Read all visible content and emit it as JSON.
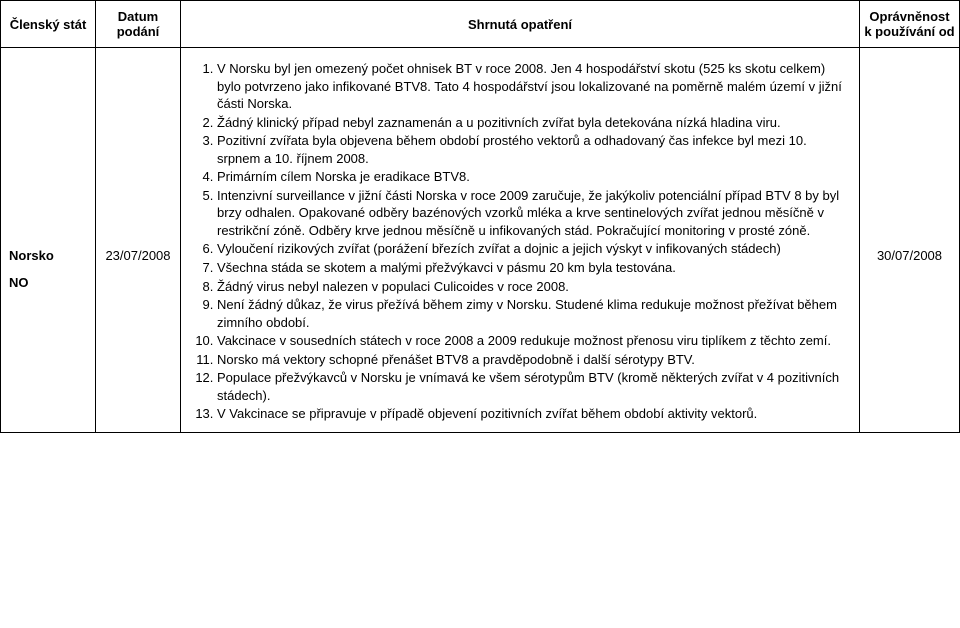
{
  "header": {
    "state": "Členský stát",
    "date": "Datum podání",
    "measures": "Shrnutá opatření",
    "eligibility": "Oprávněnost k používání od"
  },
  "row": {
    "state_name": "Norsko",
    "state_code": "NO",
    "date": "23/07/2008",
    "eligibility": "30/07/2008",
    "items": [
      "V Norsku byl jen omezený počet ohnisek BT v roce 2008. Jen 4 hospodářství skotu (525 ks skotu celkem) bylo potvrzeno jako infikované BTV8. Tato 4 hospodářství jsou lokalizované na poměrně malém území v jižní části Norska.",
      "Žádný klinický případ nebyl zaznamenán a u pozitivních zvířat byla detekována nízká hladina viru.",
      "Pozitivní zvířata byla objevena během období prostého vektorů a odhadovaný čas infekce byl mezi 10. srpnem a 10. říjnem 2008.",
      "Primárním cílem Norska je eradikace BTV8.",
      "Intenzivní surveillance v jižní části Norska v roce 2009 zaručuje, že jakýkoliv potenciální případ BTV 8 by byl brzy odhalen. Opakované odběry bazénových vzorků mléka a krve sentinelových zvířat jednou měsíčně v restrikční zóně. Odběry krve jednou měsíčně u infikovaných stád. Pokračující monitoring v prosté zóně.",
      "Vyloučení rizikových zvířat (porážení březích zvířat a dojnic a jejich výskyt v infikovaných stádech)",
      "Všechna stáda se skotem a malými přežvýkavci v pásmu 20 km byla testována.",
      "Žádný virus nebyl nalezen v populaci Culicoides v roce 2008.",
      "Není žádný důkaz, že virus přežívá během zimy v Norsku. Studené klima redukuje možnost přežívat během zimního období.",
      "Vakcinace v sousedních státech v roce 2008 a 2009 redukuje možnost přenosu viru tiplíkem z těchto zemí.",
      "Norsko má vektory schopné přenášet BTV8 a pravděpodobně i další sérotypy BTV.",
      "Populace přežvýkavců v Norsku je vnímavá ke všem sérotypům BTV (kromě některých zvířat v 4 pozitivních stádech).",
      "V Vakcinace se připravuje v případě objevení pozitivních zvířat během období aktivity vektorů."
    ]
  }
}
